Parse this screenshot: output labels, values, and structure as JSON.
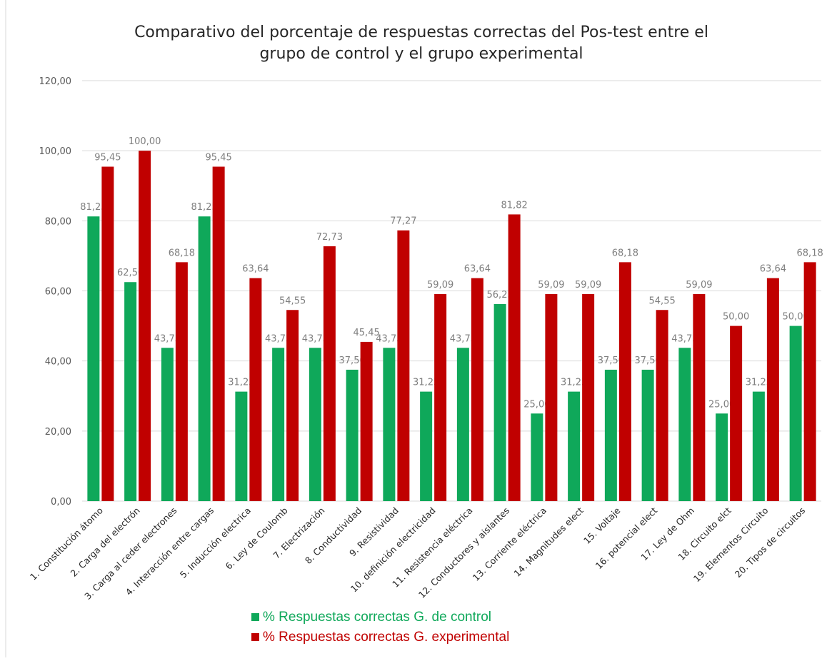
{
  "chart_data": {
    "type": "bar",
    "title": [
      "Comparativo del porcentaje de respuestas correctas del Pos-test entre el",
      "grupo de control y el grupo experimental"
    ],
    "categories": [
      "1. Constitución átomo",
      "2. Carga del electrón",
      "3. Carga al ceder electrones",
      "4. Interacción entre cargas",
      "5. Inducción electrica",
      "6. Ley de Coulomb",
      "7. Electrización",
      "8. Conductividad",
      "9. Resistividad",
      "10. definición electricidad",
      "11. Resistencia eléctrica",
      "12. Conductores y aislantes",
      "13. Corriente eléctrica",
      "14. Magnitudes elect",
      "15. Voltaje",
      "16. potencial elect",
      "17. Ley de Ohm",
      "18. Circuito elct",
      "19. Elementos Circuito",
      "20. Tipos de circuitos"
    ],
    "series": [
      {
        "name": "% Respuestas correctas G. de control",
        "color": "#0fa85a",
        "values": [
          81.25,
          62.5,
          43.75,
          81.25,
          31.25,
          43.75,
          43.75,
          37.5,
          43.75,
          31.25,
          43.75,
          56.25,
          25,
          31.25,
          37.5,
          37.5,
          43.75,
          25,
          31.25,
          50
        ],
        "value_labels": [
          "81,25",
          "62,50",
          "43,75",
          "81,25",
          "31,25",
          "43,75",
          "43,75",
          "37,50",
          "43,75",
          "31,25",
          "43,75",
          "56,25",
          "25,00",
          "31,25",
          "37,50",
          "37,50",
          "43,75",
          "25,00",
          "31,25",
          "50,00"
        ]
      },
      {
        "name": "% Respuestas correctas G. experimental",
        "color": "#c00000",
        "values": [
          95.45,
          100,
          68.18,
          95.45,
          63.64,
          54.55,
          72.73,
          45.45,
          77.27,
          59.09,
          63.64,
          81.82,
          59.09,
          59.09,
          68.18,
          54.55,
          59.09,
          50,
          63.64,
          68.18
        ],
        "value_labels": [
          "95,45",
          "100,00",
          "68,18",
          "95,45",
          "63,64",
          "54,55",
          "72,73",
          "45,45",
          "77,27",
          "59,09",
          "63,64",
          "81,82",
          "59,09",
          "59,09",
          "68,18",
          "54,55",
          "59,09",
          "50,00",
          "63,64",
          "68,18"
        ]
      }
    ],
    "ylim": [
      0,
      120
    ],
    "yticks": [
      {
        "value": 0,
        "label": "0,00"
      },
      {
        "value": 20,
        "label": "20,00"
      },
      {
        "value": 40,
        "label": "40,00"
      },
      {
        "value": 60,
        "label": "60,00"
      },
      {
        "value": 80,
        "label": "80,00"
      },
      {
        "value": 100,
        "label": "100,00"
      },
      {
        "value": 120,
        "label": "120,00"
      }
    ],
    "grid": true,
    "legend": "bottom"
  }
}
